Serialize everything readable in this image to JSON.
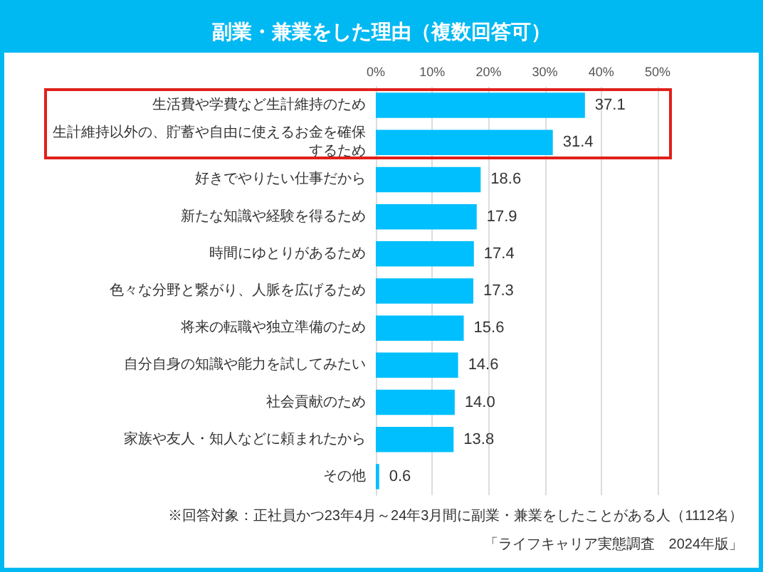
{
  "chart_data": {
    "type": "bar",
    "orientation": "horizontal",
    "title": "副業・兼業をした理由（複数回答可）",
    "categories": [
      "生活費や学費など生計維持のため",
      "生計維持以外の、貯蓄や自由に使えるお金を確保するため",
      "好きでやりたい仕事だから",
      "新たな知識や経験を得るため",
      "時間にゆとりがあるため",
      "色々な分野と繋がり、人脈を広げるため",
      "将来の転職や独立準備のため",
      "自分自身の知識や能力を試してみたい",
      "社会貢献のため",
      "家族や友人・知人などに頼まれたから",
      "その他"
    ],
    "values": [
      37.1,
      31.4,
      18.6,
      17.9,
      17.4,
      17.3,
      15.6,
      14.6,
      14.0,
      13.8,
      0.6
    ],
    "value_labels": [
      "37.1",
      "31.4",
      "18.6",
      "17.9",
      "17.4",
      "17.3",
      "15.6",
      "14.6",
      "14.0",
      "13.8",
      "0.6"
    ],
    "color": "#00bfff",
    "xlim": [
      0,
      50
    ],
    "xticks": [
      {
        "value": 0,
        "label": "0%"
      },
      {
        "value": 10,
        "label": "10%"
      },
      {
        "value": 20,
        "label": "20%"
      },
      {
        "value": 30,
        "label": "30%"
      },
      {
        "value": 40,
        "label": "40%"
      },
      {
        "value": 50,
        "label": "50%"
      }
    ],
    "grid": "x",
    "annotations": [
      "※回答対象：正社員かつ23年4月～24年3月間に副業・兼業をしたことがある人（1112名）",
      "「ライフキャリア実態調査　2024年版」"
    ]
  }
}
